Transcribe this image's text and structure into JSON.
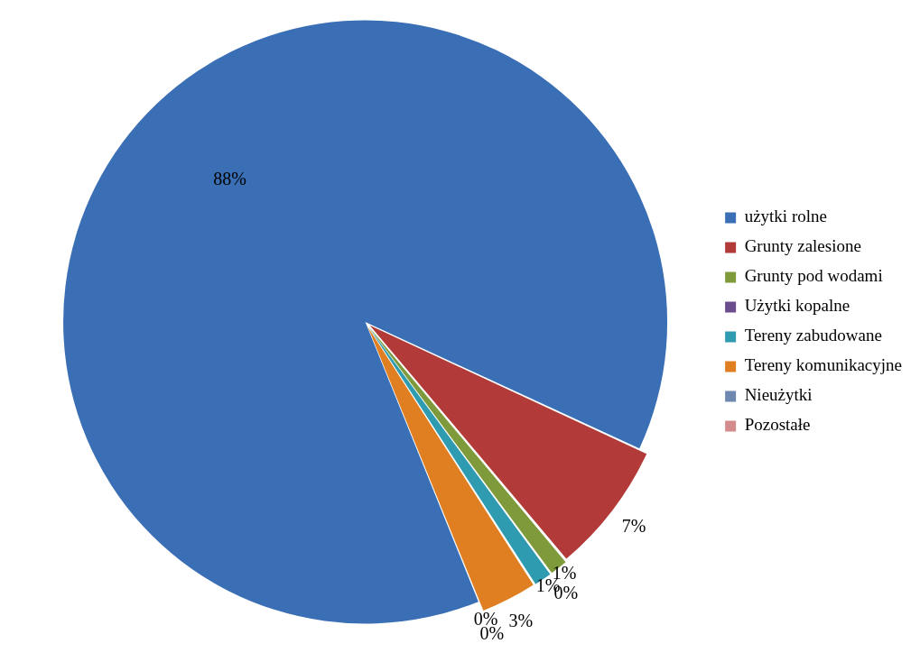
{
  "chart_data": {
    "type": "pie",
    "categories": [
      "użytki rolne",
      "Grunty zalesione",
      "Grunty pod wodami",
      "Użytki kopalne",
      "Tereny zabudowane",
      "Tereny komunikacyjne",
      "Nieużytki",
      "Pozostałe"
    ],
    "values": [
      88,
      7,
      1,
      0,
      1,
      3,
      0,
      0
    ],
    "value_labels": [
      "88%",
      "7%",
      "1%",
      "0%",
      "1%",
      "3%",
      "0%",
      "0%"
    ],
    "colors": [
      "#3a6fb5",
      "#b23a38",
      "#7f9a3a",
      "#6a4c8f",
      "#2f9bb0",
      "#e07f22",
      "#6f88b0",
      "#d38b8b"
    ],
    "legend": "right"
  }
}
